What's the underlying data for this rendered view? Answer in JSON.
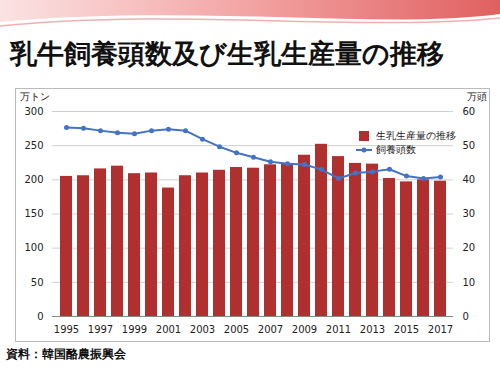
{
  "chart_data": {
    "type": "bar",
    "title": "乳牛飼養頭数及び生乳生産量の推移",
    "caption": "資料：韓国酪農振興会",
    "categories": [
      "1995",
      null,
      "1997",
      null,
      "1999",
      null,
      "2001",
      null,
      "2003",
      null,
      "2005",
      null,
      "2007",
      null,
      "2009",
      null,
      "2011",
      null,
      "2013",
      null,
      "2015",
      null,
      "2017"
    ],
    "series": [
      {
        "name": "生乳生産量の推移",
        "type": "bar",
        "color": "#b03030",
        "values": [
          205,
          206,
          216,
          220,
          209,
          210,
          188,
          206,
          210,
          214,
          218,
          217,
          222,
          224,
          236,
          252,
          234,
          224,
          223,
          202,
          197,
          200,
          198
        ]
      },
      {
        "name": "飼養頭数",
        "type": "line",
        "axis": "y2",
        "color": "#4472c4",
        "marker": "circle",
        "values": [
          55.3,
          55.1,
          54.4,
          53.8,
          53.5,
          54.4,
          54.8,
          54.4,
          51.9,
          49.7,
          47.9,
          46.6,
          45.3,
          44.7,
          44.5,
          43.0,
          40.4,
          42.0,
          42.4,
          43.1,
          41.1,
          40.4,
          40.8
        ]
      }
    ],
    "ylabel": "万トン",
    "y2label": "万頭",
    "ylim": [
      0,
      300
    ],
    "yticks": [
      0,
      50,
      100,
      150,
      200,
      250,
      300
    ],
    "y2lim": [
      0,
      60
    ],
    "y2ticks": [
      0,
      10,
      20,
      30,
      40,
      50,
      60
    ],
    "grid": true,
    "legend": "right"
  }
}
